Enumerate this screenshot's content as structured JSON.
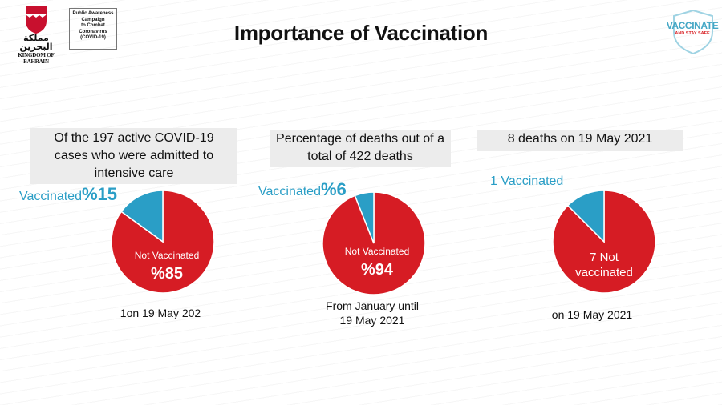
{
  "logo": {
    "arabic": "مملكة البحرين",
    "kingdom": "KINGDOM OF BAHRAIN"
  },
  "campaign": [
    "Public Awareness",
    "Campaign",
    "to Combat",
    "Coronavirus",
    "(COVID-19)"
  ],
  "title": "Importance of Vaccination",
  "badge": {
    "line1": "VACCINATE",
    "line2": "AND STAY SAFE"
  },
  "colors": {
    "red": "#d61c24",
    "blue": "#2a9ec6",
    "box": "#ececec"
  },
  "panels": [
    {
      "heading": [
        "Of the 197 active COVID-19",
        "cases who were admitted to",
        "intensive care"
      ],
      "vaccinated_text": "Vaccinated",
      "vaccinated_pct": "%15",
      "not_vaccinated_text": "Not Vaccinated",
      "not_vaccinated_pct": "%85",
      "note": [
        "1on 19 May 202"
      ]
    },
    {
      "heading": [
        "Percentage of deaths out of a",
        "total of 422 deaths"
      ],
      "vaccinated_text": "Vaccinated",
      "vaccinated_pct": "%6",
      "not_vaccinated_text": "Not Vaccinated",
      "not_vaccinated_pct": "%94",
      "note": [
        "From January until",
        "19 May  2021"
      ]
    },
    {
      "heading": [
        "8 deaths on 19 May 2021"
      ],
      "vaccinated_text": "1 Vaccinated",
      "not_vaccinated_line1": "7 Not",
      "not_vaccinated_line2": "vaccinated",
      "note": [
        "on 19 May 2021"
      ]
    }
  ],
  "chart_data": [
    {
      "type": "pie",
      "categories": [
        "Vaccinated",
        "Not Vaccinated"
      ],
      "values": [
        15,
        85
      ]
    },
    {
      "type": "pie",
      "categories": [
        "Vaccinated",
        "Not Vaccinated"
      ],
      "values": [
        6,
        94
      ]
    },
    {
      "type": "pie",
      "categories": [
        "Vaccinated",
        "Not vaccinated"
      ],
      "values": [
        1,
        7
      ]
    }
  ]
}
